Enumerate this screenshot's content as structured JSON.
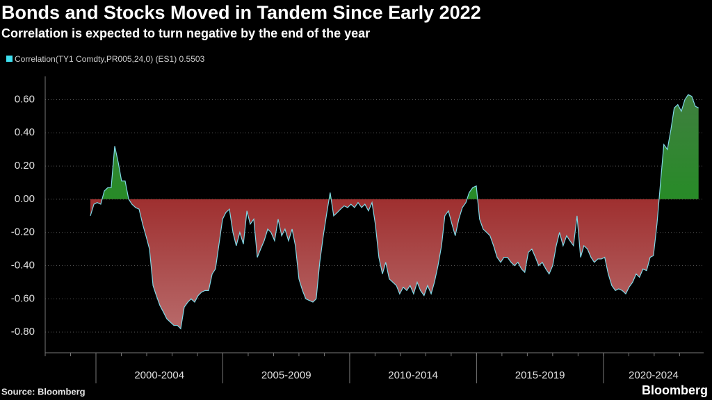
{
  "chart_data": {
    "type": "area",
    "title": "Bonds and Stocks Moved in Tandem Since Early 2022",
    "subtitle": "Correlation is expected to turn negative by the end of the year",
    "source": "Source: Bloomberg",
    "brand": "Bloomberg",
    "x": [
      1999.78,
      1999.92,
      2000.05,
      2000.19,
      2000.33,
      2000.47,
      2000.6,
      2000.74,
      2000.88,
      2001.01,
      2001.15,
      2001.29,
      2001.42,
      2001.56,
      2001.7,
      2001.84,
      2001.97,
      2002.11,
      2002.25,
      2002.38,
      2002.52,
      2002.66,
      2002.79,
      2002.93,
      2003.07,
      2003.21,
      2003.34,
      2003.48,
      2003.62,
      2003.75,
      2003.89,
      2004.03,
      2004.16,
      2004.3,
      2004.44,
      2004.58,
      2004.71,
      2004.85,
      2004.99,
      2005.12,
      2005.26,
      2005.4,
      2005.53,
      2005.67,
      2005.81,
      2005.95,
      2006.08,
      2006.22,
      2006.36,
      2006.49,
      2006.63,
      2006.77,
      2006.9,
      2007.04,
      2007.18,
      2007.32,
      2007.45,
      2007.59,
      2007.73,
      2007.86,
      2008.0,
      2008.14,
      2008.27,
      2008.41,
      2008.55,
      2008.68,
      2008.82,
      2008.96,
      2009.1,
      2009.23,
      2009.37,
      2009.51,
      2009.64,
      2009.78,
      2009.92,
      2010.05,
      2010.19,
      2010.33,
      2010.47,
      2010.6,
      2010.74,
      2010.88,
      2011.01,
      2011.15,
      2011.29,
      2011.42,
      2011.56,
      2011.7,
      2011.84,
      2011.97,
      2012.11,
      2012.25,
      2012.38,
      2012.52,
      2012.66,
      2012.79,
      2012.93,
      2013.07,
      2013.21,
      2013.34,
      2013.48,
      2013.62,
      2013.75,
      2013.89,
      2014.03,
      2014.16,
      2014.3,
      2014.44,
      2014.58,
      2014.71,
      2014.85,
      2014.99,
      2015.12,
      2015.26,
      2015.4,
      2015.53,
      2015.67,
      2015.81,
      2015.95,
      2016.08,
      2016.22,
      2016.36,
      2016.49,
      2016.63,
      2016.77,
      2016.9,
      2017.04,
      2017.18,
      2017.32,
      2017.45,
      2017.59,
      2017.73,
      2017.86,
      2018.0,
      2018.14,
      2018.27,
      2018.41,
      2018.55,
      2018.68,
      2018.82,
      2018.96,
      2019.1,
      2019.23,
      2019.37,
      2019.51,
      2019.64,
      2019.78,
      2019.92,
      2020.05,
      2020.19,
      2020.33,
      2020.47,
      2020.6,
      2020.74,
      2020.88,
      2021.01,
      2021.15,
      2021.29,
      2021.42,
      2021.56,
      2021.7,
      2021.84,
      2021.97,
      2022.11,
      2022.25,
      2022.38,
      2022.52,
      2022.66,
      2022.79,
      2022.93,
      2023.07,
      2023.21,
      2023.34,
      2023.48,
      2023.62,
      2023.75
    ],
    "series": [
      {
        "name": "Correlation(TY1 Comdty,PR005,24,0) (ES1) 0.5503",
        "color": "#7fd8e6",
        "legend_color": "#3ee0f0",
        "positive_color": "#0a9a0a",
        "negative_color": "#8a0000",
        "values": [
          -0.1,
          -0.03,
          -0.02,
          -0.03,
          0.05,
          0.07,
          0.07,
          0.32,
          0.22,
          0.11,
          0.11,
          0.0,
          -0.03,
          -0.05,
          -0.06,
          -0.15,
          -0.22,
          -0.3,
          -0.52,
          -0.58,
          -0.64,
          -0.68,
          -0.72,
          -0.74,
          -0.76,
          -0.76,
          -0.78,
          -0.65,
          -0.62,
          -0.6,
          -0.62,
          -0.58,
          -0.56,
          -0.55,
          -0.55,
          -0.45,
          -0.42,
          -0.27,
          -0.12,
          -0.08,
          -0.06,
          -0.2,
          -0.28,
          -0.2,
          -0.27,
          -0.07,
          -0.15,
          -0.12,
          -0.35,
          -0.3,
          -0.25,
          -0.18,
          -0.2,
          -0.25,
          -0.12,
          -0.22,
          -0.18,
          -0.25,
          -0.18,
          -0.28,
          -0.48,
          -0.55,
          -0.6,
          -0.61,
          -0.62,
          -0.6,
          -0.38,
          -0.22,
          -0.08,
          0.04,
          -0.1,
          -0.08,
          -0.06,
          -0.04,
          -0.05,
          -0.03,
          -0.05,
          -0.02,
          -0.05,
          -0.03,
          -0.07,
          -0.02,
          -0.15,
          -0.35,
          -0.45,
          -0.38,
          -0.48,
          -0.5,
          -0.52,
          -0.57,
          -0.53,
          -0.55,
          -0.52,
          -0.57,
          -0.5,
          -0.55,
          -0.58,
          -0.52,
          -0.57,
          -0.5,
          -0.4,
          -0.28,
          -0.1,
          -0.07,
          -0.15,
          -0.22,
          -0.12,
          -0.05,
          -0.02,
          0.04,
          0.07,
          0.08,
          -0.12,
          -0.18,
          -0.2,
          -0.22,
          -0.28,
          -0.35,
          -0.38,
          -0.35,
          -0.35,
          -0.38,
          -0.4,
          -0.38,
          -0.42,
          -0.44,
          -0.32,
          -0.3,
          -0.35,
          -0.4,
          -0.38,
          -0.42,
          -0.45,
          -0.4,
          -0.28,
          -0.2,
          -0.28,
          -0.22,
          -0.25,
          -0.28,
          -0.1,
          -0.35,
          -0.28,
          -0.3,
          -0.35,
          -0.38,
          -0.36,
          -0.36,
          -0.35,
          -0.45,
          -0.52,
          -0.55,
          -0.54,
          -0.55,
          -0.57,
          -0.53,
          -0.5,
          -0.45,
          -0.47,
          -0.42,
          -0.43,
          -0.35,
          -0.34,
          -0.15,
          0.1,
          0.33,
          0.3,
          0.42,
          0.55,
          0.57,
          0.53,
          0.6,
          0.63,
          0.62,
          0.56,
          0.55
        ]
      }
    ],
    "xlim": [
      1998,
      2023.95
    ],
    "xticks": [
      {
        "value": 2000,
        "label": "2000-2004"
      },
      {
        "value": 2005,
        "label": "2005-2009"
      },
      {
        "value": 2010,
        "label": "2010-2014"
      },
      {
        "value": 2015,
        "label": "2015-2019"
      },
      {
        "value": 2020,
        "label": "2020-2024"
      }
    ],
    "xminorticks": [
      1998,
      1999,
      2000,
      2001,
      2002,
      2003,
      2004,
      2005,
      2006,
      2007,
      2008,
      2009,
      2010,
      2011,
      2012,
      2013,
      2014,
      2015,
      2016,
      2017,
      2018,
      2019,
      2020,
      2021,
      2022,
      2023
    ],
    "ylim": [
      -0.925,
      0.74
    ],
    "yticks": [
      {
        "value": 0.6,
        "label": "0.60"
      },
      {
        "value": 0.4,
        "label": "0.40"
      },
      {
        "value": 0.2,
        "label": "0.20"
      },
      {
        "value": 0,
        "label": "0.00"
      },
      {
        "value": -0.2,
        "label": "-0.20"
      },
      {
        "value": -0.4,
        "label": "-0.40"
      },
      {
        "value": -0.6,
        "label": "-0.60"
      },
      {
        "value": -0.8,
        "label": "-0.80"
      }
    ],
    "grid": true
  }
}
